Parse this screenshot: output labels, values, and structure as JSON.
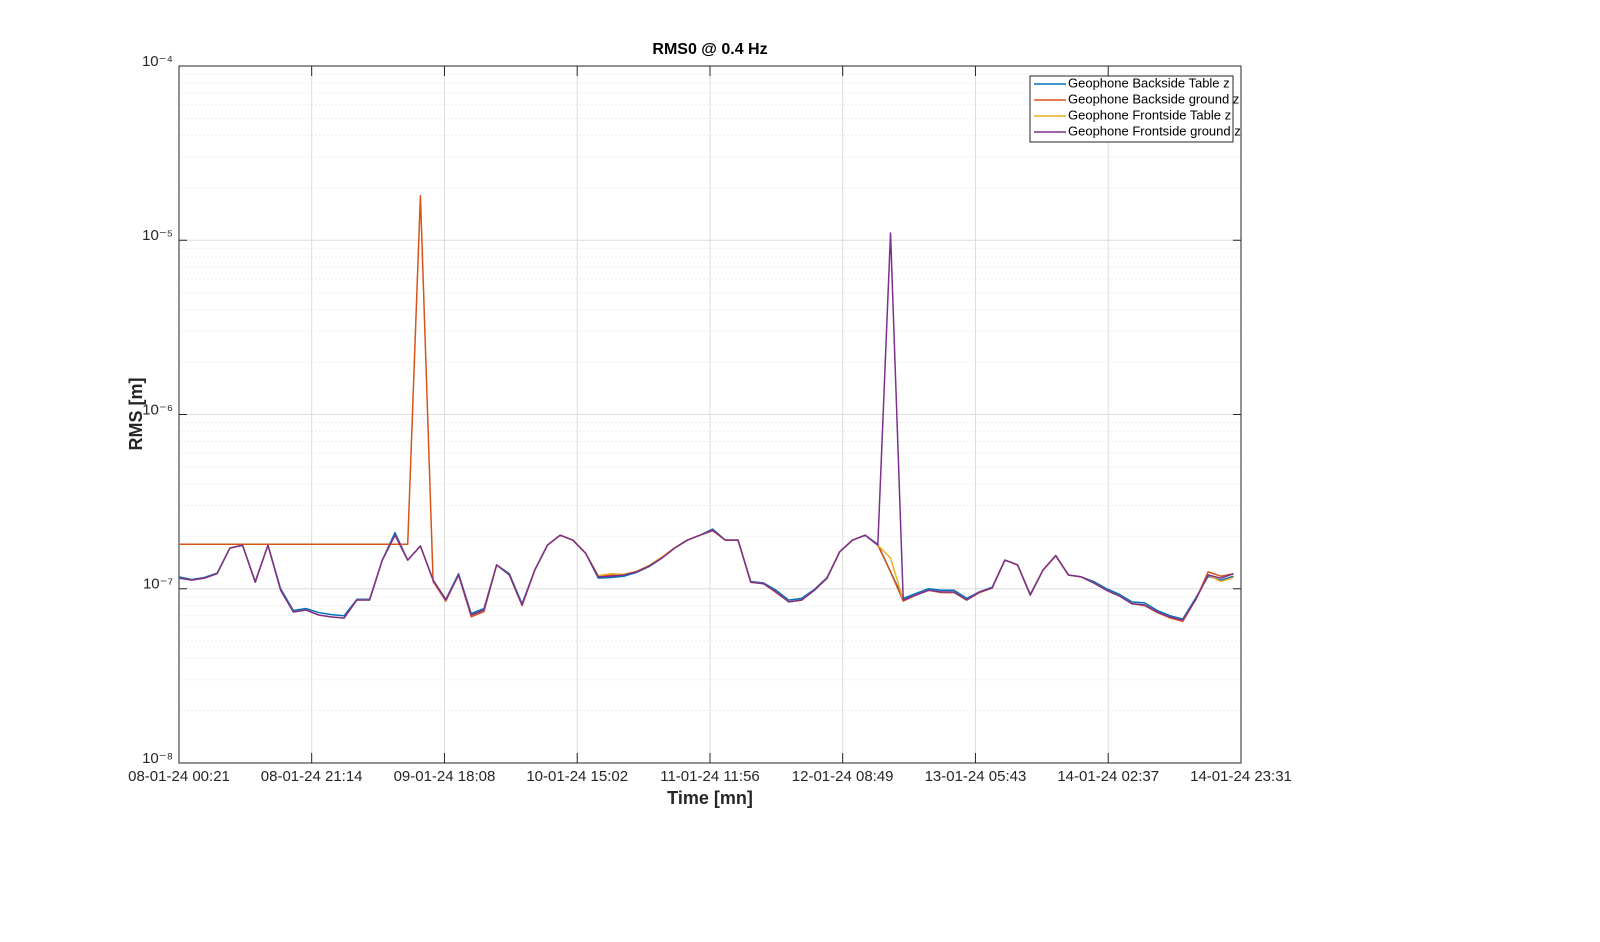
{
  "chart_data": {
    "type": "line",
    "title": "RMS0 @ 0.4 Hz",
    "xlabel": "Time [mn]",
    "ylabel": "RMS [m]",
    "log_y": true,
    "grid": true,
    "minor_grid": true,
    "legend_loc": "northeast",
    "xlim": [
      "08-01-24 00:21",
      "14-01-24 23:31"
    ],
    "xticks": [
      "08-01-24 00:21",
      "08-01-24 21:14",
      "09-01-24 18:08",
      "10-01-24 15:02",
      "11-01-24 11:56",
      "12-01-24 08:49",
      "13-01-24 05:43",
      "14-01-24 02:37",
      "14-01-24 23:31"
    ],
    "ylim": [
      1e-08,
      0.0001
    ],
    "yticks": [
      {
        "value": 1e-08,
        "label": "10⁻⁸"
      },
      {
        "value": 1e-07,
        "label": "10⁻⁷"
      },
      {
        "value": 1e-06,
        "label": "10⁻⁶"
      },
      {
        "value": 1e-05,
        "label": "10⁻⁵"
      },
      {
        "value": 0.0001,
        "label": "10⁻⁴"
      }
    ],
    "x": [
      "08-01-24 00:21",
      "08-01-24 02:21",
      "08-01-24 04:21",
      "08-01-24 06:21",
      "08-01-24 08:21",
      "08-01-24 10:21",
      "08-01-24 12:21",
      "08-01-24 14:21",
      "08-01-24 16:21",
      "08-01-24 18:21",
      "08-01-24 20:21",
      "08-01-24 22:21",
      "09-01-24 00:21",
      "09-01-24 02:21",
      "09-01-24 04:21",
      "09-01-24 06:21",
      "09-01-24 08:21",
      "09-01-24 10:21",
      "09-01-24 12:21",
      "09-01-24 14:21",
      "09-01-24 16:21",
      "09-01-24 18:21",
      "09-01-24 20:21",
      "09-01-24 22:21",
      "10-01-24 00:21",
      "10-01-24 02:21",
      "10-01-24 04:21",
      "10-01-24 06:21",
      "10-01-24 08:21",
      "10-01-24 10:21",
      "10-01-24 12:21",
      "10-01-24 14:21",
      "10-01-24 16:21",
      "10-01-24 18:21",
      "10-01-24 20:21",
      "10-01-24 22:21",
      "11-01-24 00:21",
      "11-01-24 02:21",
      "11-01-24 04:21",
      "11-01-24 06:21",
      "11-01-24 08:21",
      "11-01-24 10:21",
      "11-01-24 12:21",
      "11-01-24 14:21",
      "11-01-24 16:21",
      "11-01-24 18:21",
      "11-01-24 20:21",
      "11-01-24 22:21",
      "12-01-24 00:21",
      "12-01-24 02:21",
      "12-01-24 04:21",
      "12-01-24 06:21",
      "12-01-24 08:21",
      "12-01-24 10:21",
      "12-01-24 12:21",
      "12-01-24 14:21",
      "12-01-24 16:21",
      "12-01-24 18:21",
      "12-01-24 20:21",
      "12-01-24 22:21",
      "13-01-24 00:21",
      "13-01-24 02:21",
      "13-01-24 04:21",
      "13-01-24 06:21",
      "13-01-24 08:21",
      "13-01-24 10:21",
      "13-01-24 12:21",
      "13-01-24 14:21",
      "13-01-24 16:21",
      "13-01-24 18:21",
      "13-01-24 20:21",
      "13-01-24 22:21",
      "14-01-24 00:21",
      "14-01-24 02:21",
      "14-01-24 04:21",
      "14-01-24 06:21",
      "14-01-24 08:21",
      "14-01-24 10:21",
      "14-01-24 12:21",
      "14-01-24 14:21",
      "14-01-24 16:21",
      "14-01-24 18:21",
      "14-01-24 20:21",
      "14-01-24 22:21"
    ],
    "series": [
      {
        "name": "Geophone Backside Table z",
        "color": "#0072BD",
        "values": [
          1.17e-07,
          1.13e-07,
          1.16e-07,
          1.23e-07,
          1.71e-07,
          1.78e-07,
          1.1e-07,
          1.78e-07,
          1e-07,
          7.5e-08,
          7.7e-08,
          7.3e-08,
          7.1e-08,
          7e-08,
          8.7e-08,
          8.7e-08,
          1.46e-07,
          2.1e-07,
          1.46e-07,
          1.76e-07,
          1.12e-07,
          8.7e-08,
          1.22e-07,
          7.2e-08,
          7.7e-08,
          1.37e-07,
          1.22e-07,
          8.2e-08,
          1.28e-07,
          1.78e-07,
          2.03e-07,
          1.9e-07,
          1.6e-07,
          1.15e-07,
          1.16e-07,
          1.18e-07,
          1.24e-07,
          1.34e-07,
          1.5e-07,
          1.71e-07,
          1.9e-07,
          2.03e-07,
          2.2e-07,
          1.9e-07,
          1.9e-07,
          1.1e-07,
          1.08e-07,
          9.8e-08,
          8.6e-08,
          8.8e-08,
          9.9e-08,
          1.16e-07,
          1.63e-07,
          1.9e-07,
          2.03e-07,
          1.8e-07,
          1.25e-07,
          8.8e-08,
          9.4e-08,
          1e-07,
          9.8e-08,
          9.8e-08,
          8.8e-08,
          9.6e-08,
          1.02e-07,
          1.46e-07,
          1.37e-07,
          9.3e-08,
          1.28e-07,
          1.55e-07,
          1.2e-07,
          1.17e-07,
          1.1e-07,
          1e-07,
          9.3e-08,
          8.4e-08,
          8.3e-08,
          7.5e-08,
          7e-08,
          6.7e-08,
          8.8e-08,
          1.18e-07,
          1.12e-07,
          1.18e-07
        ]
      },
      {
        "name": "Geophone Backside ground z",
        "color": "#D95319",
        "values": [
          1.8e-07,
          1.8e-07,
          1.8e-07,
          1.8e-07,
          1.8e-07,
          1.8e-07,
          1.8e-07,
          1.8e-07,
          1.8e-07,
          1.8e-07,
          1.8e-07,
          1.8e-07,
          1.8e-07,
          1.8e-07,
          1.8e-07,
          1.8e-07,
          1.8e-07,
          1.8e-07,
          1.8e-07,
          1.8e-05,
          1.1e-07,
          8.5e-08,
          1.2e-07,
          6.9e-08,
          7.4e-08,
          1.37e-07,
          1.2e-07,
          8e-08,
          1.28e-07,
          1.78e-07,
          2.03e-07,
          1.9e-07,
          1.6e-07,
          1.17e-07,
          1.2e-07,
          1.2e-07,
          1.25e-07,
          1.35e-07,
          1.5e-07,
          1.71e-07,
          1.9e-07,
          2.03e-07,
          2.15e-07,
          1.9e-07,
          1.9e-07,
          1.09e-07,
          1.07e-07,
          9.5e-08,
          8.4e-08,
          8.6e-08,
          9.8e-08,
          1.15e-07,
          1.63e-07,
          1.9e-07,
          2.03e-07,
          1.78e-07,
          1.25e-07,
          8.5e-08,
          9.2e-08,
          9.8e-08,
          9.5e-08,
          9.5e-08,
          8.6e-08,
          9.5e-08,
          1.01e-07,
          1.46e-07,
          1.37e-07,
          9.2e-08,
          1.28e-07,
          1.55e-07,
          1.2e-07,
          1.17e-07,
          1.08e-07,
          9.8e-08,
          9.1e-08,
          8.2e-08,
          8e-08,
          7.3e-08,
          6.8e-08,
          6.5e-08,
          8.6e-08,
          1.25e-07,
          1.18e-07,
          1.22e-07
        ]
      },
      {
        "name": "Geophone Frontside Table z",
        "color": "#EDB120",
        "values": [
          1.15e-07,
          1.12e-07,
          1.15e-07,
          1.22e-07,
          1.71e-07,
          1.78e-07,
          1.09e-07,
          1.78e-07,
          9.8e-08,
          7.36e-08,
          7.55e-08,
          7.07e-08,
          6.88e-08,
          6.8e-08,
          8.62e-08,
          8.62e-08,
          1.46e-07,
          2.03e-07,
          1.46e-07,
          1.76e-07,
          1.12e-07,
          8.62e-08,
          1.2e-07,
          7.07e-08,
          7.55e-08,
          1.37e-07,
          1.2e-07,
          8.07e-08,
          1.28e-07,
          1.78e-07,
          2.03e-07,
          1.9e-07,
          1.6e-07,
          1.19e-07,
          1.22e-07,
          1.21e-07,
          1.26e-07,
          1.36e-07,
          1.52e-07,
          1.72e-07,
          1.9e-07,
          2.03e-07,
          2.17e-07,
          1.9e-07,
          1.9e-07,
          1.09e-07,
          1.07e-07,
          9.58e-08,
          8.4e-08,
          8.62e-08,
          9.8e-08,
          1.15e-07,
          1.63e-07,
          1.9e-07,
          2.03e-07,
          1.78e-07,
          1.5e-07,
          8.62e-08,
          9.2e-08,
          9.8e-08,
          9.58e-08,
          9.58e-08,
          8.62e-08,
          9.58e-08,
          1.01e-07,
          1.46e-07,
          1.37e-07,
          9.2e-08,
          1.28e-07,
          1.55e-07,
          1.2e-07,
          1.17e-07,
          1.08e-07,
          9.8e-08,
          9.1e-08,
          8.2e-08,
          8.07e-08,
          7.36e-08,
          6.88e-08,
          6.6e-08,
          8.62e-08,
          1.2e-07,
          1.1e-07,
          1.16e-07
        ]
      },
      {
        "name": "Geophone Frontside ground z",
        "color": "#7E2F8E",
        "values": [
          1.15e-07,
          1.12e-07,
          1.15e-07,
          1.22e-07,
          1.71e-07,
          1.78e-07,
          1.09e-07,
          1.78e-07,
          9.8e-08,
          7.36e-08,
          7.55e-08,
          7.07e-08,
          6.88e-08,
          6.8e-08,
          8.62e-08,
          8.62e-08,
          1.46e-07,
          2.03e-07,
          1.46e-07,
          1.76e-07,
          1.12e-07,
          8.62e-08,
          1.2e-07,
          7.07e-08,
          7.55e-08,
          1.37e-07,
          1.2e-07,
          8.07e-08,
          1.28e-07,
          1.78e-07,
          2.03e-07,
          1.9e-07,
          1.6e-07,
          1.17e-07,
          1.18e-07,
          1.2e-07,
          1.25e-07,
          1.35e-07,
          1.5e-07,
          1.71e-07,
          1.9e-07,
          2.03e-07,
          2.17e-07,
          1.9e-07,
          1.9e-07,
          1.09e-07,
          1.07e-07,
          9.58e-08,
          8.4e-08,
          8.62e-08,
          9.8e-08,
          1.15e-07,
          1.63e-07,
          1.9e-07,
          2.03e-07,
          1.78e-07,
          1.1e-05,
          8.62e-08,
          9.2e-08,
          9.8e-08,
          9.58e-08,
          9.58e-08,
          8.62e-08,
          9.58e-08,
          1.01e-07,
          1.46e-07,
          1.37e-07,
          9.2e-08,
          1.28e-07,
          1.55e-07,
          1.2e-07,
          1.17e-07,
          1.08e-07,
          9.8e-08,
          9.1e-08,
          8.2e-08,
          8.07e-08,
          7.36e-08,
          6.88e-08,
          6.6e-08,
          8.62e-08,
          1.2e-07,
          1.15e-07,
          1.22e-07
        ]
      }
    ]
  }
}
